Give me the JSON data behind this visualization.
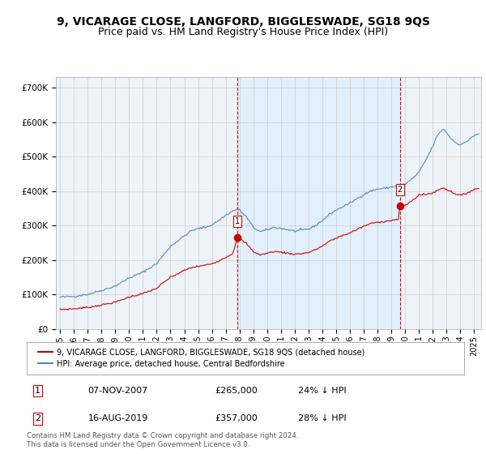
{
  "title": "9, VICARAGE CLOSE, LANGFORD, BIGGLESWADE, SG18 9QS",
  "subtitle": "Price paid vs. HM Land Registry's House Price Index (HPI)",
  "ylabel_ticks": [
    "£0",
    "£100K",
    "£200K",
    "£300K",
    "£400K",
    "£500K",
    "£600K",
    "£700K"
  ],
  "ytick_vals": [
    0,
    100000,
    200000,
    300000,
    400000,
    500000,
    600000,
    700000
  ],
  "ylim": [
    0,
    730000
  ],
  "xlim_start": 1994.7,
  "xlim_end": 2025.5,
  "marker1_x": 2007.854,
  "marker1_y": 265000,
  "marker1_label": "1",
  "marker2_x": 2019.622,
  "marker2_y": 357000,
  "marker2_label": "2",
  "vline1_x": 2007.854,
  "vline2_x": 2019.622,
  "shade_color": "#ddeeff",
  "legend_line1": "9, VICARAGE CLOSE, LANGFORD, BIGGLESWADE, SG18 9QS (detached house)",
  "legend_line2": "HPI: Average price, detached house, Central Bedfordshire",
  "table_row1": [
    "1",
    "07-NOV-2007",
    "£265,000",
    "24% ↓ HPI"
  ],
  "table_row2": [
    "2",
    "16-AUG-2019",
    "£357,000",
    "28% ↓ HPI"
  ],
  "footer": "Contains HM Land Registry data © Crown copyright and database right 2024.\nThis data is licensed under the Open Government Licence v3.0.",
  "line_color_red": "#cc0000",
  "line_color_blue": "#5588bb",
  "vline_color": "#dd0000",
  "grid_color": "#cccccc",
  "bg_color": "#ffffff",
  "plot_bg_color": "#eef3f8",
  "title_fontsize": 10,
  "subtitle_fontsize": 9,
  "tick_fontsize": 7.5
}
